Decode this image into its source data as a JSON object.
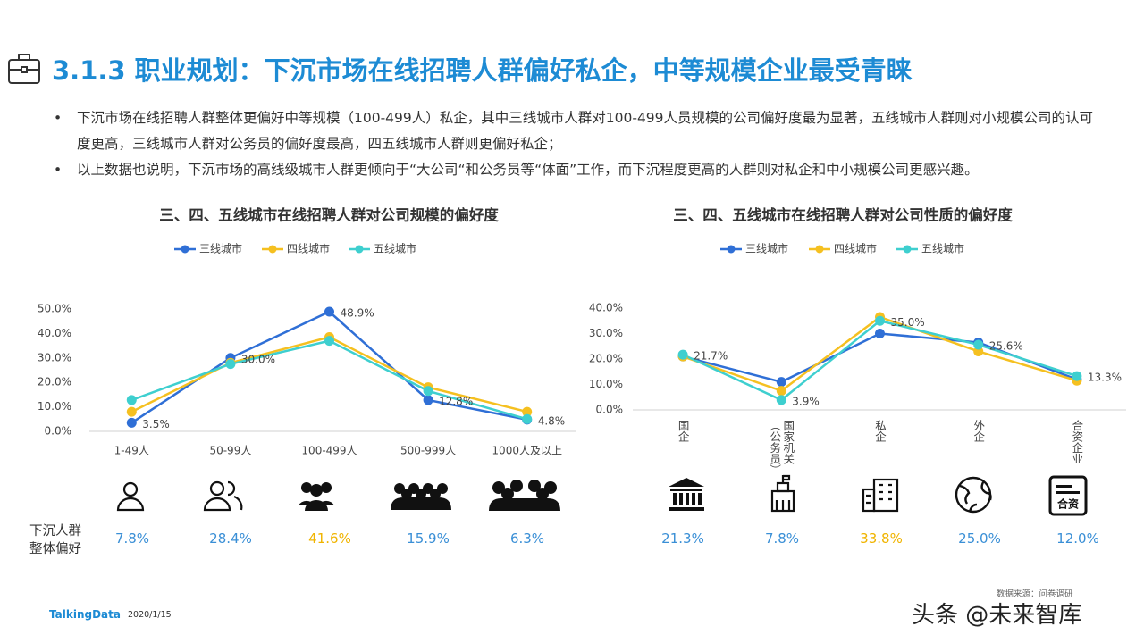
{
  "title": "3.1.3 职业规划：下沉市场在线招聘人群偏好私企，中等规模企业最受青睐",
  "bullets": [
    "下沉市场在线招聘人群整体更偏好中等规模（100-499人）私企，其中三线城市人群对100-499人员规模的公司偏好度最为显著，五线城市人群则对小规模公司的认可度更高，三线城市人群对公务员的偏好度最高，四五线城市人群则更偏好私企；",
    "以上数据也说明，下沉市场的高线级城市人群更倾向于“大公司“和公务员等“体面”工作，而下沉程度更高的人群则对私企和中小规模公司更感兴趣。"
  ],
  "chart_data": [
    {
      "type": "line",
      "title": "三、四、五线城市在线招聘人群对公司规模的偏好度",
      "categories": [
        "1-49人",
        "50-99人",
        "100-499人",
        "500-999人",
        "1000人及以上"
      ],
      "series": [
        {
          "name": "三线城市",
          "color": "#2f6fd6",
          "values": [
            3.5,
            30.0,
            48.9,
            12.8,
            4.8
          ],
          "value_labels": [
            "3.5%",
            "30.0%",
            "48.9%",
            "12.8%",
            "4.8%"
          ]
        },
        {
          "name": "四线城市",
          "color": "#f5c020",
          "values": [
            8.0,
            28.0,
            38.5,
            18.0,
            8.0
          ]
        },
        {
          "name": "五线城市",
          "color": "#3ecfcf",
          "values": [
            12.8,
            27.5,
            37.0,
            16.5,
            5.0
          ]
        }
      ],
      "ylim": [
        0,
        50
      ],
      "yticks": [
        {
          "value": 0,
          "label": "0.0%"
        },
        {
          "value": 10,
          "label": "10.0%"
        },
        {
          "value": 20,
          "label": "20.0%"
        },
        {
          "value": 30,
          "label": "30.0%"
        },
        {
          "value": 40,
          "label": "40.0%"
        },
        {
          "value": 50,
          "label": "50.0%"
        }
      ],
      "grid": false,
      "legend": "top"
    },
    {
      "type": "line",
      "title": "三、四、五线城市在线招聘人群对公司性质的偏好度",
      "categories": [
        "国企",
        "国家机关（公务员）",
        "私企",
        "外企",
        "合资企业"
      ],
      "series": [
        {
          "name": "三线城市",
          "color": "#2f6fd6",
          "values": [
            21.0,
            11.0,
            30.0,
            26.5,
            12.0
          ]
        },
        {
          "name": "四线城市",
          "color": "#f5c020",
          "values": [
            21.0,
            7.5,
            36.5,
            23.0,
            11.5
          ]
        },
        {
          "name": "五线城市",
          "color": "#3ecfcf",
          "values": [
            21.7,
            3.9,
            35.0,
            25.6,
            13.3
          ],
          "value_labels": [
            "21.7%",
            "3.9%",
            "35.0%",
            "25.6%",
            "13.3%"
          ]
        }
      ],
      "ylim": [
        0,
        40
      ],
      "yticks": [
        {
          "value": 0,
          "label": "0.0%"
        },
        {
          "value": 10,
          "label": "10.0%"
        },
        {
          "value": 20,
          "label": "20.0%"
        },
        {
          "value": 30,
          "label": "30.0%"
        },
        {
          "value": 40,
          "label": "40.0%"
        }
      ],
      "grid": false,
      "legend": "top"
    }
  ],
  "summary": {
    "label": [
      "下沉人群",
      "整体偏好"
    ],
    "rows": [
      [
        "7.8%",
        "28.4%",
        "41.6%",
        "15.9%",
        "6.3%"
      ],
      [
        "21.3%",
        "7.8%",
        "33.8%",
        "25.0%",
        "12.0%"
      ]
    ]
  },
  "footer": {
    "brand": "TalkingData",
    "date": "2020/1/15",
    "source": "数据来源：问卷调研",
    "watermark": "头条 @未来智库"
  }
}
